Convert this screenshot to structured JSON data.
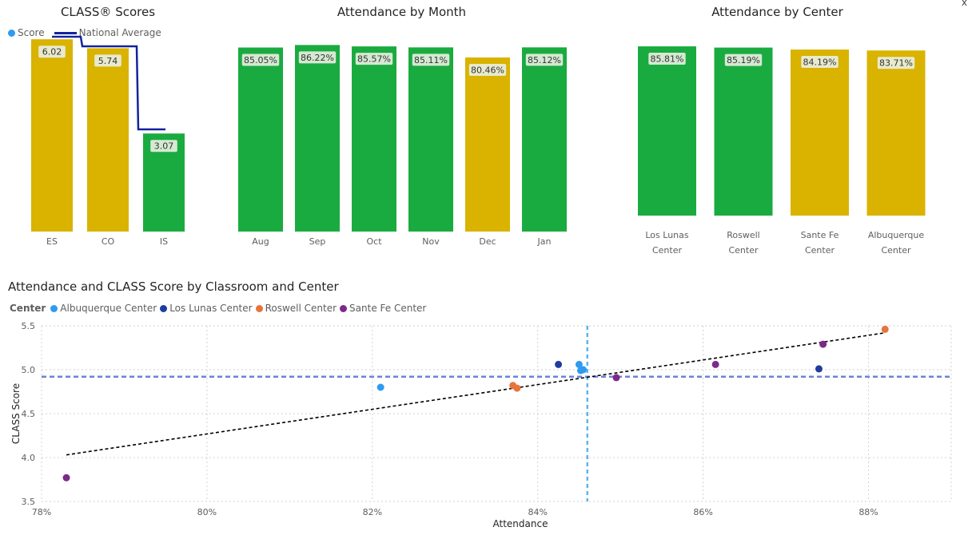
{
  "close_glyph": "x",
  "colors": {
    "green": "#1aab40",
    "gold": "#d9b300",
    "national_avg": "#12239e",
    "label_bg": "#eaf0e2",
    "albuquerque": "#2e9bf0",
    "los_lunas": "#1f3c9e",
    "roswell": "#e8733c",
    "santa_fe": "#7b2a8a",
    "mean_line_h": "#6b83d6",
    "mean_line_v": "#5bb5f0",
    "trend": "#000000"
  },
  "chart_data": [
    {
      "id": "class_scores",
      "type": "bar",
      "title": "CLASS® Scores",
      "legend": [
        {
          "label": "Score",
          "kind": "dot",
          "color": "#2e9bf0"
        },
        {
          "label": "National Average",
          "kind": "line",
          "color": "#12239e"
        }
      ],
      "categories": [
        "ES",
        "CO",
        "IS"
      ],
      "values": [
        6.02,
        5.74,
        3.07
      ],
      "data_labels": [
        "6.02",
        "5.74",
        "3.07"
      ],
      "bar_colors": [
        "gold",
        "gold",
        "green"
      ],
      "national_average": [
        6.1,
        5.8,
        3.2
      ],
      "ylim": [
        0,
        7
      ]
    },
    {
      "id": "attendance_month",
      "type": "bar",
      "title": "Attendance by Month",
      "categories": [
        "Aug",
        "Sep",
        "Oct",
        "Nov",
        "Dec",
        "Jan"
      ],
      "values": [
        85.05,
        86.22,
        85.57,
        85.11,
        80.46,
        85.12
      ],
      "data_labels": [
        "85.05%",
        "86.22%",
        "85.57%",
        "85.11%",
        "80.46%",
        "85.12%"
      ],
      "bar_colors": [
        "green",
        "green",
        "green",
        "green",
        "gold",
        "green"
      ],
      "ylim": [
        0,
        100
      ]
    },
    {
      "id": "attendance_center",
      "type": "bar",
      "title": "Attendance by Center",
      "categories": [
        [
          "Los Lunas",
          "Center"
        ],
        [
          "Roswell",
          "Center"
        ],
        [
          "Sante Fe",
          "Center"
        ],
        [
          "Albuquerque",
          "Center"
        ]
      ],
      "values": [
        85.81,
        85.19,
        84.19,
        83.71
      ],
      "data_labels": [
        "85.81%",
        "85.19%",
        "84.19%",
        "83.71%"
      ],
      "bar_colors": [
        "green",
        "green",
        "gold",
        "gold"
      ],
      "ylim": [
        0,
        100
      ]
    },
    {
      "id": "scatter",
      "type": "scatter",
      "title": "Attendance and CLASS Score by Classroom and Center",
      "legend_title": "Center",
      "xlabel": "Attendance",
      "ylabel": "CLASS Score",
      "xlim": [
        78,
        89
      ],
      "ylim": [
        3.5,
        5.5
      ],
      "x_ticks": [
        78,
        80,
        82,
        84,
        86,
        88
      ],
      "x_tick_labels": [
        "78%",
        "80%",
        "82%",
        "84%",
        "86%",
        "88%"
      ],
      "y_ticks": [
        3.5,
        4.0,
        4.5,
        5.0,
        5.5
      ],
      "y_tick_labels": [
        "3.5",
        "4.0",
        "4.5",
        "5.0",
        "5.5"
      ],
      "grid": true,
      "series": [
        {
          "name": "Albuquerque Center",
          "color": "albuquerque",
          "points": [
            [
              82.1,
              4.8
            ],
            [
              84.5,
              5.06
            ],
            [
              84.55,
              5.0
            ],
            [
              84.52,
              4.99
            ]
          ]
        },
        {
          "name": "Los Lunas Center",
          "color": "los_lunas",
          "points": [
            [
              84.25,
              5.06
            ],
            [
              87.4,
              5.01
            ]
          ]
        },
        {
          "name": "Roswell Center",
          "color": "roswell",
          "points": [
            [
              83.7,
              4.82
            ],
            [
              83.75,
              4.79
            ],
            [
              88.2,
              5.46
            ]
          ]
        },
        {
          "name": "Sante Fe Center",
          "color": "santa_fe",
          "points": [
            [
              78.3,
              3.77
            ],
            [
              84.95,
              4.91
            ],
            [
              86.15,
              5.06
            ],
            [
              87.45,
              5.29
            ]
          ]
        }
      ],
      "trend_line": [
        [
          78.3,
          4.03
        ],
        [
          88.2,
          5.42
        ]
      ],
      "mean_x": 84.6,
      "mean_y": 4.92
    }
  ]
}
